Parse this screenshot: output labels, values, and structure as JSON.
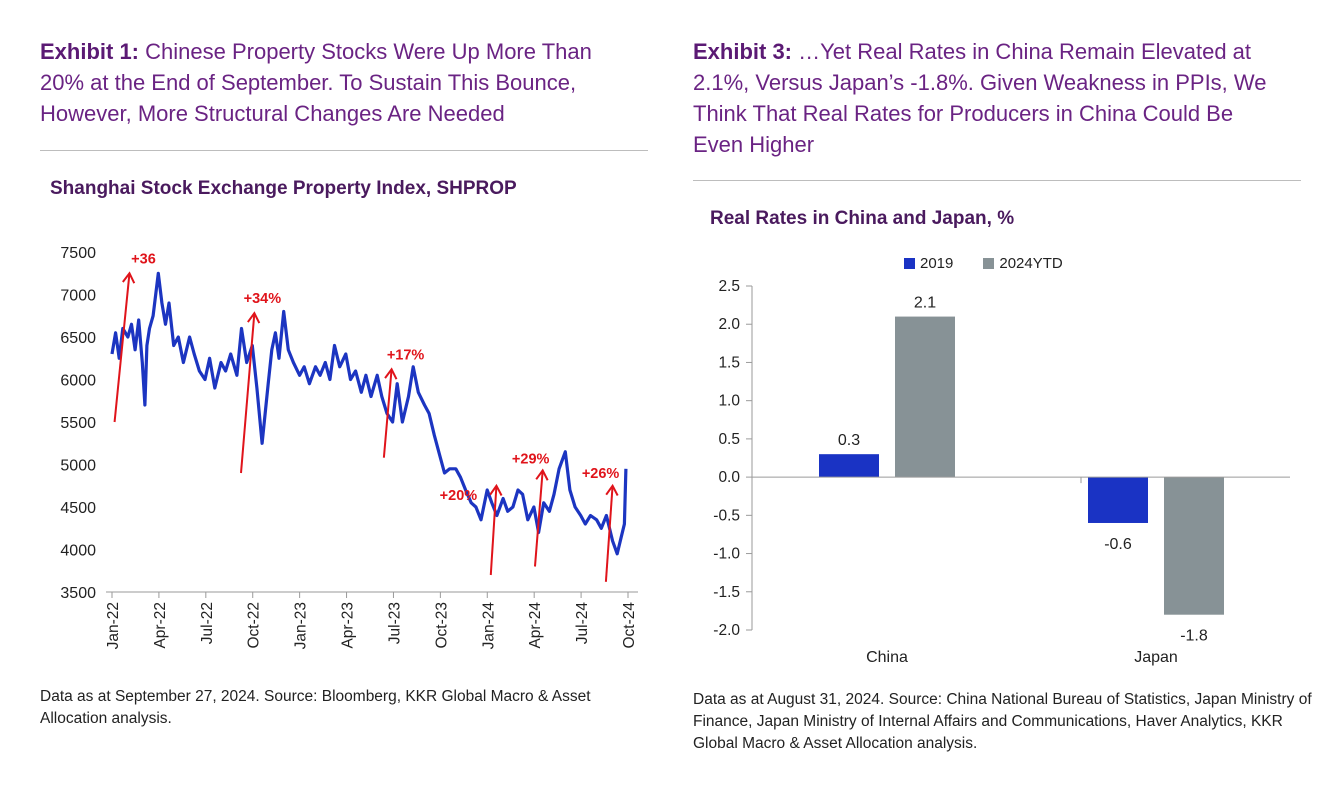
{
  "left": {
    "exhibit_lead": "Exhibit 1:",
    "exhibit_text": "Chinese Property Stocks Were Up More Than 20% at the End of September. To Sustain This Bounce, However, More Structural Changes Are Needed",
    "source": "Data as at September 27, 2024. Source: Bloomberg, KKR Global Macro & Asset Allocation analysis."
  },
  "right": {
    "exhibit_lead": "Exhibit 3:",
    "exhibit_text": "…Yet Real Rates in China Remain Elevated at 2.1%, Versus Japan’s -1.8%. Given Weakness in PPIs, We Think That Real Rates for Producers in China Could Be Even Higher",
    "source": "Data as at August 31, 2024. Source: China National Bureau of Statistics, Japan Ministry of Finance, Japan Ministry of Internal Affairs and Communications, Haver Analytics, KKR Global Macro & Asset Allocation analysis."
  },
  "colors": {
    "line": "#1c35c1",
    "arrow": "#e0141b",
    "bar_2019": "#1a33c4",
    "bar_2024": "#879296",
    "title": "#6a2383"
  },
  "chart_data": [
    {
      "type": "line",
      "title": "Shanghai Stock Exchange Property Index, SHPROP",
      "ylim": [
        3500,
        7500
      ],
      "yticks": [
        3500,
        4000,
        4500,
        5000,
        5500,
        6000,
        6500,
        7000,
        7500
      ],
      "xticks": [
        "Jan-22",
        "Apr-22",
        "Jul-22",
        "Oct-22",
        "Jan-23",
        "Apr-23",
        "Jul-23",
        "Oct-23",
        "Jan-24",
        "Apr-24",
        "Jul-24",
        "Oct-24"
      ],
      "grid": false,
      "series": [
        {
          "x": [
            "2022-01-01",
            "2022-01-08",
            "2022-01-15",
            "2022-01-22",
            "2022-02-01",
            "2022-02-08",
            "2022-02-15",
            "2022-02-22",
            "2022-03-01",
            "2022-03-06",
            "2022-03-10",
            "2022-03-15",
            "2022-03-22",
            "2022-04-01",
            "2022-04-08",
            "2022-04-15",
            "2022-04-22",
            "2022-05-01",
            "2022-05-10",
            "2022-05-20",
            "2022-06-01",
            "2022-06-10",
            "2022-06-20",
            "2022-07-01",
            "2022-07-10",
            "2022-07-20",
            "2022-08-01",
            "2022-08-10",
            "2022-08-20",
            "2022-09-01",
            "2022-09-10",
            "2022-09-20",
            "2022-10-01",
            "2022-10-10",
            "2022-10-20",
            "2022-11-01",
            "2022-11-08",
            "2022-11-15",
            "2022-11-22",
            "2022-12-01",
            "2022-12-10",
            "2022-12-20",
            "2023-01-01",
            "2023-01-10",
            "2023-01-20",
            "2023-02-01",
            "2023-02-10",
            "2023-02-20",
            "2023-03-01",
            "2023-03-10",
            "2023-03-20",
            "2023-04-01",
            "2023-04-10",
            "2023-04-20",
            "2023-05-01",
            "2023-05-10",
            "2023-05-20",
            "2023-06-01",
            "2023-06-10",
            "2023-06-20",
            "2023-07-01",
            "2023-07-10",
            "2023-07-20",
            "2023-08-01",
            "2023-08-10",
            "2023-08-20",
            "2023-09-01",
            "2023-09-10",
            "2023-09-20",
            "2023-10-01",
            "2023-10-10",
            "2023-10-20",
            "2023-11-01",
            "2023-11-10",
            "2023-11-20",
            "2023-12-01",
            "2023-12-10",
            "2023-12-20",
            "2024-01-01",
            "2024-01-10",
            "2024-01-20",
            "2024-02-01",
            "2024-02-10",
            "2024-02-20",
            "2024-03-01",
            "2024-03-10",
            "2024-03-20",
            "2024-04-01",
            "2024-04-10",
            "2024-04-20",
            "2024-05-01",
            "2024-05-10",
            "2024-05-20",
            "2024-06-01",
            "2024-06-10",
            "2024-06-20",
            "2024-07-01",
            "2024-07-10",
            "2024-07-20",
            "2024-08-01",
            "2024-08-10",
            "2024-08-20",
            "2024-09-01",
            "2024-09-10",
            "2024-09-18",
            "2024-09-24",
            "2024-09-27"
          ],
          "values": [
            6300,
            6550,
            6250,
            6600,
            6500,
            6650,
            6350,
            6700,
            6200,
            5700,
            6400,
            6600,
            6750,
            7250,
            6900,
            6650,
            6900,
            6400,
            6500,
            6200,
            6500,
            6300,
            6100,
            6000,
            6250,
            5900,
            6200,
            6100,
            6300,
            6050,
            6600,
            6200,
            6400,
            5900,
            5250,
            5950,
            6350,
            6550,
            6250,
            6800,
            6350,
            6200,
            6050,
            6150,
            5950,
            6150,
            6050,
            6200,
            6000,
            6400,
            6150,
            6300,
            6000,
            6100,
            5850,
            6050,
            5800,
            6050,
            5800,
            5600,
            5500,
            5950,
            5500,
            5800,
            6150,
            5850,
            5700,
            5600,
            5350,
            5100,
            4900,
            4950,
            4950,
            4850,
            4700,
            4550,
            4500,
            4350,
            4700,
            4550,
            4400,
            4600,
            4450,
            4500,
            4700,
            4650,
            4350,
            4500,
            4200,
            4550,
            4450,
            4650,
            4950,
            5150,
            4700,
            4500,
            4400,
            4300,
            4400,
            4350,
            4250,
            4400,
            4100,
            3950,
            4150,
            4300,
            4950
          ]
        }
      ],
      "annotations": [
        "+36",
        "+34%",
        "+17%",
        "+20%",
        "+29%",
        "+26%"
      ]
    },
    {
      "type": "bar",
      "title": "Real Rates in China and Japan, %",
      "categories": [
        "China",
        "Japan"
      ],
      "series": [
        {
          "name": "2019",
          "values": [
            0.3,
            -0.6
          ]
        },
        {
          "name": "2024YTD",
          "values": [
            2.1,
            -1.8
          ]
        }
      ],
      "value_labels": {
        "2019": [
          "0.3",
          "-0.6"
        ],
        "2024YTD": [
          "2.1",
          "-1.8"
        ]
      },
      "ylim": [
        -2.0,
        2.5
      ],
      "yticks": [
        "2.5",
        "2.0",
        "1.5",
        "1.0",
        "0.5",
        "0.0",
        "-0.5",
        "-1.0",
        "-1.5",
        "-2.0"
      ],
      "legend_position": "top",
      "grid": false
    }
  ]
}
